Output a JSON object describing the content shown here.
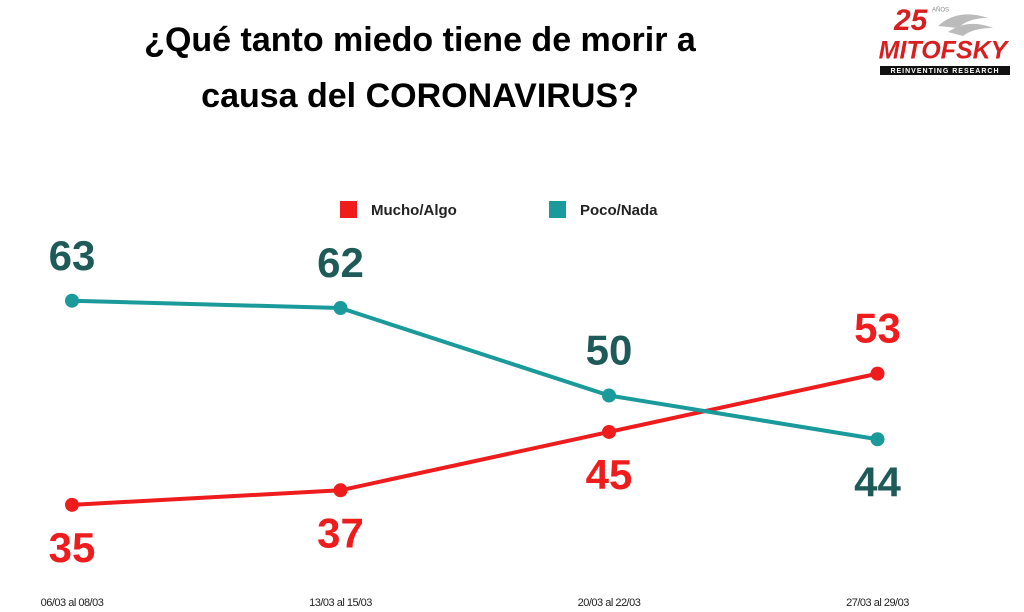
{
  "chart_data": {
    "type": "line",
    "title": "¿Qué tanto miedo tiene de morir a causa del CORONAVIRUS?",
    "categories": [
      "06/03 al 08/03",
      "13/03 al 15/03",
      "20/03 al 22/03",
      "27/03 al 29/03"
    ],
    "series": [
      {
        "name": "Mucho/Algo",
        "color": "#ee1c1c",
        "label_color": "#ee1c1c",
        "values": [
          35,
          37,
          45,
          53
        ]
      },
      {
        "name": "Poco/Nada",
        "color": "#1a9a9a",
        "label_color": "#1d5a58",
        "values": [
          63,
          62,
          50,
          44
        ]
      }
    ],
    "legend": "top"
  },
  "logo": {
    "number": "25",
    "years": "AÑOS",
    "name": "MITOFSKY",
    "tagline": "REINVENTING RESEARCH"
  }
}
